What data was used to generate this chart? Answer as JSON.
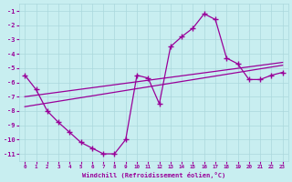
{
  "xlabel": "Windchill (Refroidissement éolien,°C)",
  "background_color": "#c8eef0",
  "grid_color": "#aad8dc",
  "line_color": "#990099",
  "hours": [
    0,
    1,
    2,
    3,
    4,
    5,
    6,
    7,
    8,
    9,
    10,
    11,
    12,
    13,
    14,
    15,
    16,
    17,
    18,
    19,
    20,
    21,
    22,
    23
  ],
  "windchill": [
    -5.5,
    -6.5,
    -8.0,
    -8.8,
    -9.5,
    -10.2,
    -10.6,
    -11.0,
    -11.0,
    -10.0,
    -5.5,
    -5.7,
    -7.5,
    -3.5,
    -2.8,
    -2.2,
    -1.2,
    -1.6,
    -4.3,
    -4.7,
    -5.8,
    -5.8,
    -5.5,
    -5.3
  ],
  "line2_x": [
    0,
    23
  ],
  "line2_y": [
    -7.0,
    -4.6
  ],
  "line3_x": [
    0,
    23
  ],
  "line3_y": [
    -7.7,
    -4.8
  ],
  "ylim": [
    -11.5,
    -0.5
  ],
  "yticks": [
    -11,
    -10,
    -9,
    -8,
    -7,
    -6,
    -5,
    -4,
    -3,
    -2,
    -1
  ],
  "xlim": [
    -0.5,
    23.5
  ],
  "xticks": [
    0,
    1,
    2,
    3,
    4,
    5,
    6,
    7,
    8,
    9,
    10,
    11,
    12,
    13,
    14,
    15,
    16,
    17,
    18,
    19,
    20,
    21,
    22,
    23
  ]
}
